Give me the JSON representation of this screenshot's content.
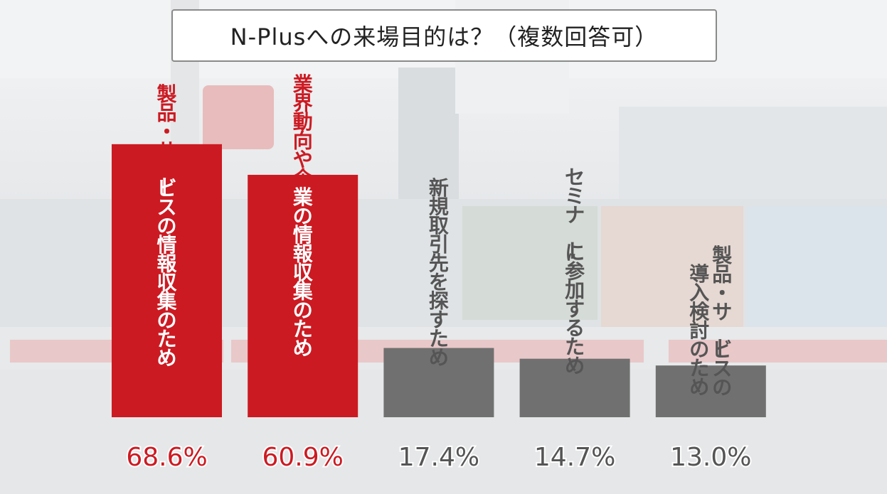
{
  "title": "N-Plusへの来場目的は？（複数回答可）",
  "colors": {
    "highlight": "#cc1a22",
    "muted": "#707070",
    "highlight_text": "#cc1a22",
    "muted_text": "#555555",
    "label_on_red": "#ffffff",
    "label_on_gray": "#555555"
  },
  "chart_data": {
    "type": "bar",
    "title": "N-Plusへの来場目的は？（複数回答可）",
    "xlabel": "",
    "ylabel": "",
    "ylim": [
      0,
      100
    ],
    "unit": "%",
    "categories": [
      "製品・サービスの情報収集のため",
      "業界動向や企業の情報収集のため",
      "新規取引先を探すため",
      "セミナーに参加するため",
      "製品・サービスの導入検討のため"
    ],
    "category_lines": [
      [
        "製品・サービスの情報収集のため"
      ],
      [
        "業界動向や企業の情報収集のため"
      ],
      [
        "新規取引先を探すため"
      ],
      [
        "セミナーに参加するため"
      ],
      [
        "製品・サービスの",
        "導入検討のため"
      ]
    ],
    "values": [
      68.6,
      60.9,
      17.4,
      14.7,
      13.0
    ],
    "value_labels": [
      "68.6%",
      "60.9%",
      "17.4%",
      "14.7%",
      "13.0%"
    ],
    "highlighted": [
      true,
      true,
      false,
      false,
      false
    ]
  }
}
